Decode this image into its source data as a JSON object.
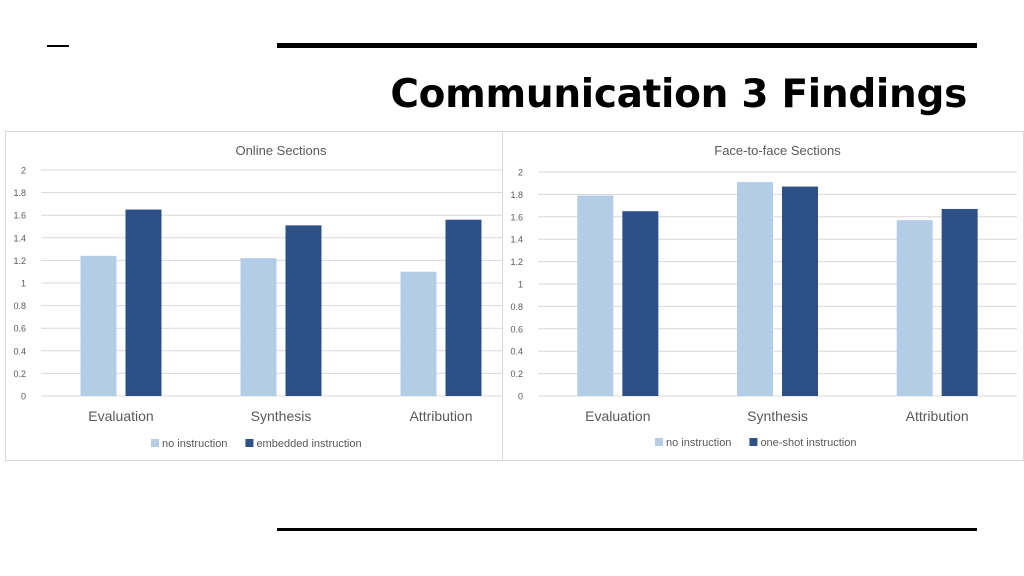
{
  "slide": {
    "title": "Communication 3 Findings"
  },
  "colors": {
    "no_instruction": "#b4cde6",
    "instruction": "#2c5087",
    "gridline": "#d9d9d9",
    "axis_text": "#595959"
  },
  "chart_data": [
    {
      "type": "bar",
      "title": "Online Sections",
      "categories": [
        "Evaluation",
        "Synthesis",
        "Attribution"
      ],
      "series": [
        {
          "name": "no instruction",
          "values": [
            1.24,
            1.22,
            1.1
          ]
        },
        {
          "name": "embedded instruction",
          "values": [
            1.65,
            1.51,
            1.56
          ]
        }
      ],
      "ylim": [
        0,
        2
      ],
      "yticks": [
        "0",
        "0.2",
        "0.4",
        "0.6",
        "0.8",
        "1",
        "1.2",
        "1.4",
        "1.6",
        "1.8",
        "2"
      ],
      "grid": true,
      "legend": "bottom"
    },
    {
      "type": "bar",
      "title": "Face-to-face Sections",
      "categories": [
        "Evaluation",
        "Synthesis",
        "Attribution"
      ],
      "series": [
        {
          "name": "no instruction",
          "values": [
            1.79,
            1.91,
            1.57
          ]
        },
        {
          "name": "one-shot instruction",
          "values": [
            1.65,
            1.87,
            1.67
          ]
        }
      ],
      "ylim": [
        0,
        2
      ],
      "yticks": [
        "0",
        "0.2",
        "0.4",
        "0.6",
        "0.8",
        "1",
        "1.2",
        "1.4",
        "1.6",
        "1.8",
        "2"
      ],
      "grid": true,
      "legend": "bottom"
    }
  ]
}
